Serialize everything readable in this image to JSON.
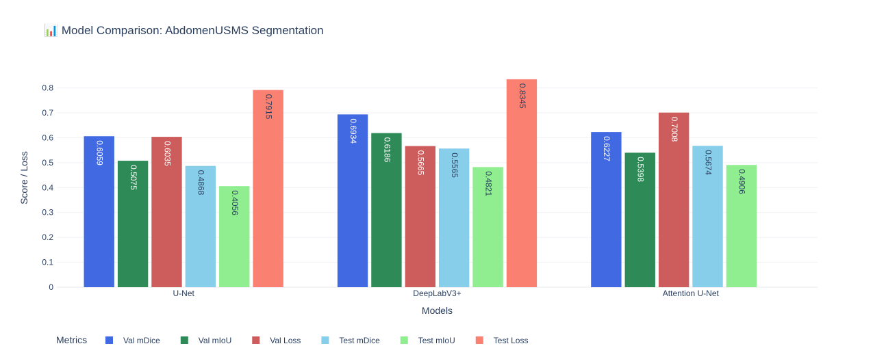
{
  "chart_data": {
    "type": "bar",
    "title": "📊 Model Comparison: AbdomenUSMS Segmentation",
    "xlabel": "Models",
    "ylabel": "Score / Loss",
    "categories": [
      "U-Net",
      "DeepLabV3+",
      "Attention U-Net"
    ],
    "ylim": [
      0,
      0.8
    ],
    "yticks": [
      "0",
      "0.1",
      "0.2",
      "0.3",
      "0.4",
      "0.5",
      "0.6",
      "0.7",
      "0.8"
    ],
    "grid": true,
    "legend_title": "Metrics",
    "legend_position": "bottom",
    "series": [
      {
        "name": "Val mDice",
        "color": "#4169E1",
        "label_color": "#ffffff",
        "values": [
          0.6059,
          0.6934,
          0.6227
        ],
        "labels": [
          "0.6059",
          "0.6934",
          "0.6227"
        ]
      },
      {
        "name": "Val mIoU",
        "color": "#2E8B57",
        "label_color": "#ffffff",
        "values": [
          0.5075,
          0.6186,
          0.5398
        ],
        "labels": [
          "0.5075",
          "0.6186",
          "0.5398"
        ]
      },
      {
        "name": "Val Loss",
        "color": "#CD5C5C",
        "label_color": "#ffffff",
        "values": [
          0.6035,
          0.5665,
          0.7008
        ],
        "labels": [
          "0.6035",
          "0.5665",
          "0.7008"
        ]
      },
      {
        "name": "Test mDice",
        "color": "#87CEEB",
        "label_color": "#2a3f5f",
        "values": [
          0.4868,
          0.5565,
          0.5674
        ],
        "labels": [
          "0.4868",
          "0.5565",
          "0.5674"
        ]
      },
      {
        "name": "Test mIoU",
        "color": "#90EE90",
        "label_color": "#2a3f5f",
        "values": [
          0.4056,
          0.4821,
          0.4906
        ],
        "labels": [
          "0.4056",
          "0.4821",
          "0.4906"
        ]
      },
      {
        "name": "Test Loss",
        "color": "#FA8072",
        "label_color": "#2a3f5f",
        "values": [
          0.7915,
          0.8345,
          null
        ],
        "labels": [
          "0.7915",
          "0.8345",
          ""
        ]
      }
    ]
  }
}
